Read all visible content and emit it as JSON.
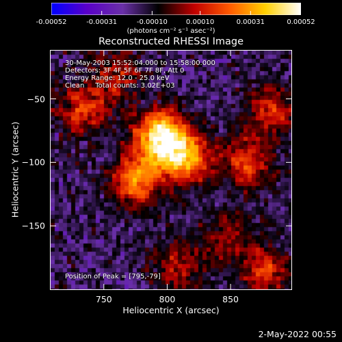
{
  "colorbar": {
    "tick_labels": [
      "-0.00052",
      "-0.00031",
      "-0.00010",
      "0.00010",
      "0.00031",
      "0.00052"
    ],
    "tick_values": [
      -0.00052,
      -0.00031,
      -0.0001,
      0.0001,
      0.00031,
      0.00052
    ],
    "units": "(photons cm⁻² s⁻¹ asec⁻²)",
    "range": [
      -0.00052,
      0.00052
    ],
    "colormap": [
      "#0000ff",
      "#5a00c8",
      "#6a30a8",
      "#000000",
      "#c00000",
      "#ff5a00",
      "#ffd000",
      "#ffffff"
    ]
  },
  "chart_data": {
    "type": "heatmap",
    "title": "Reconstructed RHESSI Image",
    "xlabel": "Heliocentric X (arcsec)",
    "ylabel": "Heliocentric Y (arcsec)",
    "xlim": [
      708,
      898
    ],
    "ylim": [
      -200,
      -12
    ],
    "x_ticks": [
      750,
      800,
      850
    ],
    "y_ticks": [
      -50,
      -100,
      -150
    ],
    "annotations": [
      "30-May-2003 15:52:04.000 to 15:58:00.000",
      "Detectors: 3F 4F 5F 6F 7F 8F, Att 0",
      "Energy Range: 12.0 - 25.0 keV",
      "Clean     Total counts: 3.02E+03"
    ],
    "peak_label": "Position of Peak = [795,-79]",
    "peak": [
      795,
      -79
    ],
    "sources": [
      {
        "x": 795,
        "y": -79,
        "intensity": 1.0
      },
      {
        "x": 815,
        "y": -97,
        "intensity": 0.8
      },
      {
        "x": 776,
        "y": -113,
        "intensity": 0.7
      },
      {
        "x": 735,
        "y": -58,
        "intensity": 0.5
      },
      {
        "x": 863,
        "y": -100,
        "intensity": 0.5
      },
      {
        "x": 882,
        "y": -60,
        "intensity": 0.45
      },
      {
        "x": 877,
        "y": -185,
        "intensity": 0.45
      },
      {
        "x": 808,
        "y": -180,
        "intensity": 0.35
      },
      {
        "x": 848,
        "y": -160,
        "intensity": 0.3
      },
      {
        "x": 760,
        "y": -30,
        "intensity": 0.35
      }
    ]
  },
  "timestamp": "2-May-2022 00:55"
}
